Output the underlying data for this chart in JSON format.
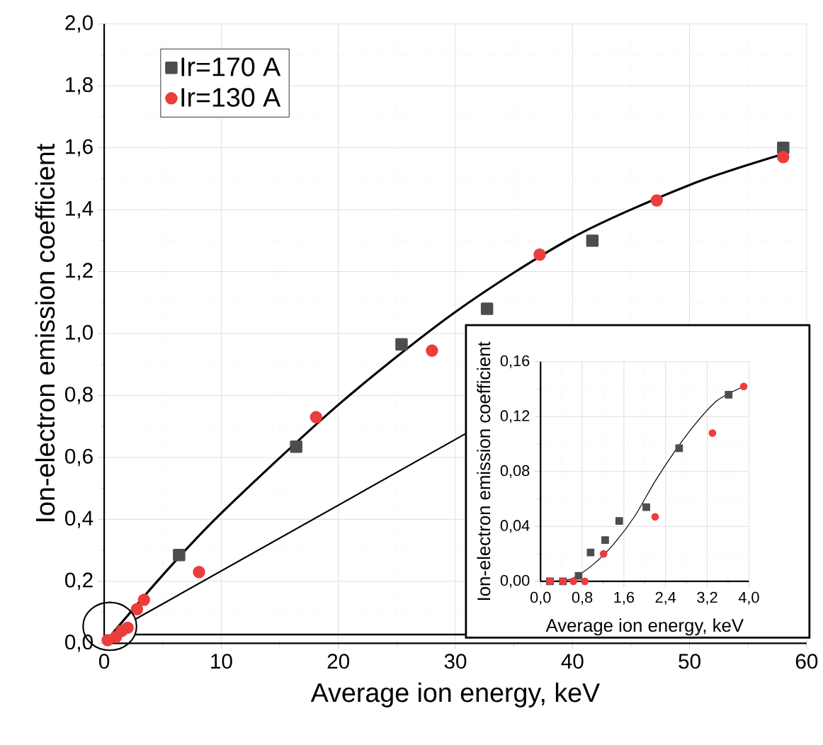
{
  "chart_data": [
    {
      "type": "scatter",
      "xlabel": "Average ion energy, keV",
      "ylabel": "Ion-electron emission coefficient",
      "xlim": [
        0,
        60
      ],
      "xticks": [
        0,
        10,
        20,
        30,
        40,
        50,
        60
      ],
      "ylim": [
        0,
        2.0
      ],
      "yticks": [
        {
          "value": 0,
          "label": "0,0"
        },
        {
          "value": 0.2,
          "label": "0,2"
        },
        {
          "value": 0.4,
          "label": "0,4"
        },
        {
          "value": 0.6,
          "label": "0,6"
        },
        {
          "value": 0.8,
          "label": "0,8"
        },
        {
          "value": 1.0,
          "label": "1,0"
        },
        {
          "value": 1.2,
          "label": "1,2"
        },
        {
          "value": 1.4,
          "label": "1,4"
        },
        {
          "value": 1.6,
          "label": "1,6"
        },
        {
          "value": 1.8,
          "label": "1,8"
        },
        {
          "value": 2.0,
          "label": "2,0"
        }
      ],
      "grid": true,
      "legend": "top left",
      "series": [
        {
          "type": "line",
          "color": "#000000",
          "marker": "none",
          "x": [
            0,
            5,
            10,
            20,
            30,
            40,
            50,
            58
          ],
          "values": [
            0,
            0.22,
            0.42,
            0.77,
            1.07,
            1.31,
            1.48,
            1.58
          ]
        },
        {
          "name": "Ir=170 A",
          "color": "#4d4d4d",
          "marker": "square",
          "x": [
            6.4,
            16.4,
            25.4,
            32.7,
            41.7,
            58.0
          ],
          "values": [
            0.285,
            0.635,
            0.965,
            1.08,
            1.3,
            1.6
          ]
        },
        {
          "name": "Ir=130 A",
          "color": "#ec3d3d",
          "marker": "circle",
          "x": [
            0.3,
            1.0,
            1.5,
            2.0,
            2.8,
            3.4,
            8.1,
            18.1,
            28.0,
            37.2,
            47.2,
            58.0
          ],
          "values": [
            0.01,
            0.02,
            0.04,
            0.05,
            0.11,
            0.14,
            0.23,
            0.73,
            0.945,
            1.255,
            1.43,
            1.57
          ]
        }
      ]
    },
    {
      "type": "scatter",
      "xlabel": "Average ion energy, keV",
      "ylabel": "Ion-electron emission coefficient",
      "xlim": [
        0,
        4.0
      ],
      "xticks": [
        {
          "value": 0,
          "label": "0,0"
        },
        {
          "value": 0.8,
          "label": "0,8"
        },
        {
          "value": 1.6,
          "label": "1,6"
        },
        {
          "value": 2.4,
          "label": "2,4"
        },
        {
          "value": 3.2,
          "label": "3,2"
        },
        {
          "value": 4.0,
          "label": "4,0"
        }
      ],
      "ylim": [
        0,
        0.16
      ],
      "yticks": [
        {
          "value": 0,
          "label": "0,00"
        },
        {
          "value": 0.04,
          "label": "0,04"
        },
        {
          "value": 0.08,
          "label": "0,08"
        },
        {
          "value": 0.12,
          "label": "0,12"
        },
        {
          "value": 0.16,
          "label": "0,16"
        }
      ],
      "grid": true,
      "series": [
        {
          "type": "line",
          "color": "#000000",
          "marker": "none",
          "x": [
            0.2,
            0.6,
            1.0,
            1.4,
            1.8,
            2.2,
            2.6,
            3.0,
            3.4,
            3.9
          ],
          "values": [
            0,
            0.002,
            0.012,
            0.027,
            0.047,
            0.073,
            0.096,
            0.116,
            0.132,
            0.142
          ]
        },
        {
          "color": "#4d4d4d",
          "marker": "square",
          "x": [
            0.18,
            0.43,
            0.73,
            0.96,
            1.24,
            1.51,
            2.03,
            2.66,
            3.61
          ],
          "values": [
            0,
            0,
            0.004,
            0.021,
            0.03,
            0.044,
            0.054,
            0.097,
            0.136
          ]
        },
        {
          "color": "#ec3d3d",
          "marker": "circle",
          "x": [
            0.18,
            0.43,
            0.63,
            0.85,
            1.21,
            2.2,
            3.3,
            3.9
          ],
          "values": [
            0,
            0,
            0,
            0,
            0.02,
            0.047,
            0.108,
            0.142
          ]
        }
      ]
    }
  ]
}
